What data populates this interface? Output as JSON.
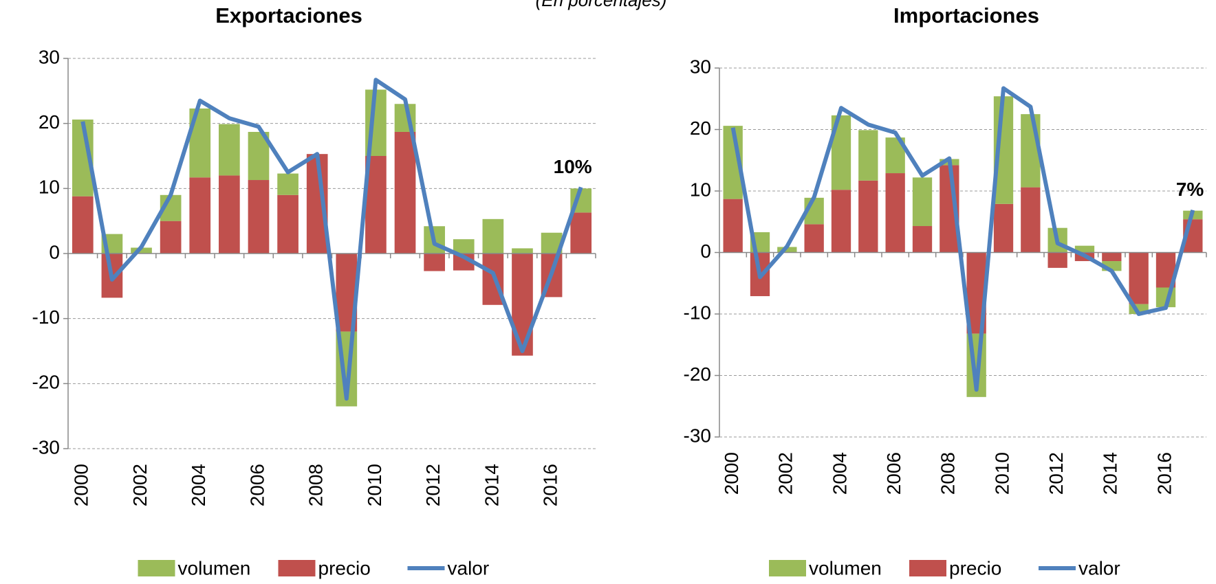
{
  "subtitle": "(En porcentajes)",
  "chart_data": [
    {
      "type": "bar",
      "stacked": true,
      "title": "Exportaciones",
      "annotation": "10%",
      "categories": [
        "2000",
        null,
        "2002",
        null,
        "2004",
        null,
        "2006",
        null,
        "2008",
        null,
        "2010",
        null,
        "2012",
        null,
        "2014",
        null,
        "2016",
        null
      ],
      "series": [
        {
          "name": "volumen",
          "color": "#9bbb59",
          "values": [
            11.8,
            3.0,
            0.9,
            4.0,
            10.6,
            7.9,
            7.4,
            3.3,
            0,
            -11.5,
            10.2,
            4.3,
            4.2,
            2.2,
            5.3,
            0.8,
            3.2,
            3.7
          ]
        },
        {
          "name": "precio",
          "color": "#c0504d",
          "values": [
            8.8,
            -6.8,
            0,
            5.0,
            11.7,
            12.0,
            11.3,
            9.0,
            15.3,
            -12.0,
            15.0,
            18.7,
            -2.7,
            -2.6,
            -7.9,
            -15.7,
            -6.7,
            6.3
          ]
        },
        {
          "name": "valor",
          "type": "line",
          "color": "#4f81bd",
          "values": [
            20.3,
            -4,
            1,
            9,
            23.5,
            20.8,
            19.5,
            12.5,
            15.3,
            -22.3,
            26.7,
            23.7,
            1.5,
            -0.5,
            -3,
            -15,
            -3,
            10.2
          ]
        }
      ],
      "ylim": [
        -30,
        30
      ],
      "yticks": [
        -30,
        -20,
        -10,
        0,
        10,
        20,
        30
      ],
      "grid": true,
      "legend": "bottom"
    },
    {
      "type": "bar",
      "stacked": true,
      "title": "Importaciones",
      "annotation": "7%",
      "categories": [
        "2000",
        null,
        "2002",
        null,
        "2004",
        null,
        "2006",
        null,
        "2008",
        null,
        "2010",
        null,
        "2012",
        null,
        "2014",
        null,
        "2016",
        null
      ],
      "series": [
        {
          "name": "volumen",
          "color": "#9bbb59",
          "values": [
            11.9,
            3.3,
            0.9,
            4.3,
            12.1,
            8.2,
            5.8,
            7.9,
            1.0,
            -10.3,
            17.5,
            11.9,
            4.0,
            1.1,
            -1.6,
            -1.6,
            -3.2,
            1.4
          ]
        },
        {
          "name": "precio",
          "color": "#c0504d",
          "values": [
            8.7,
            -7.1,
            0,
            4.6,
            10.2,
            11.7,
            12.9,
            4.3,
            14.2,
            -13.2,
            7.9,
            10.6,
            -2.5,
            -1.4,
            -1.4,
            -8.4,
            -5.7,
            5.4
          ]
        },
        {
          "name": "valor",
          "type": "line",
          "color": "#4f81bd",
          "values": [
            20.3,
            -4,
            1,
            9,
            23.5,
            20.8,
            19.5,
            12.5,
            15.3,
            -22.3,
            26.7,
            23.7,
            1.5,
            -0.5,
            -3,
            -10,
            -9,
            6.9
          ]
        }
      ],
      "ylim": [
        -30,
        30
      ],
      "yticks": [
        -30,
        -20,
        -10,
        0,
        10,
        20,
        30
      ],
      "grid": true,
      "legend": "bottom"
    }
  ]
}
